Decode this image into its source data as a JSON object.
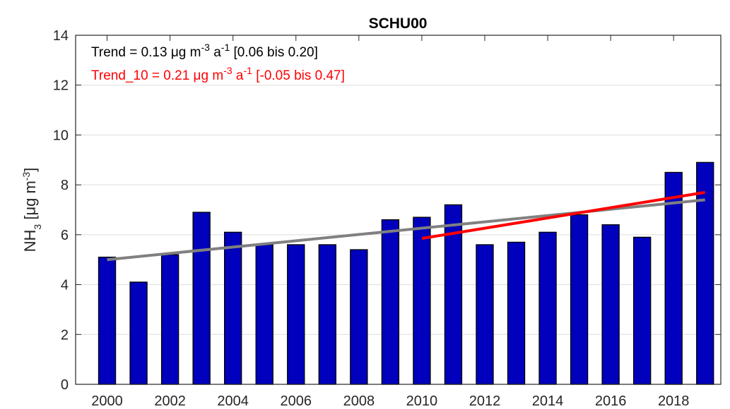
{
  "chart_data": {
    "type": "bar",
    "title": "SCHU00",
    "y_label": [
      {
        "text": "NH"
      },
      {
        "text": "3",
        "sub": true
      },
      {
        "text": " [μg m"
      },
      {
        "text": "-3",
        "sup": true
      },
      {
        "text": "]"
      }
    ],
    "x": [
      2000,
      2001,
      2002,
      2003,
      2004,
      2005,
      2006,
      2007,
      2008,
      2009,
      2010,
      2011,
      2012,
      2013,
      2014,
      2015,
      2016,
      2017,
      2018,
      2019
    ],
    "values": [
      5.1,
      4.1,
      5.2,
      6.9,
      6.1,
      5.6,
      5.6,
      5.6,
      5.4,
      6.6,
      6.7,
      7.2,
      5.6,
      5.7,
      6.1,
      6.8,
      6.4,
      5.9,
      8.5,
      8.9
    ],
    "color": "#0000bd",
    "xlim": [
      1999,
      2019.5
    ],
    "xticks": [
      2000,
      2002,
      2004,
      2006,
      2008,
      2010,
      2012,
      2014,
      2016,
      2018
    ],
    "ylim": [
      0,
      14
    ],
    "yticks": [
      0,
      2,
      4,
      6,
      8,
      10,
      12,
      14
    ],
    "grid": true,
    "lines": [
      {
        "color": "#808080",
        "x": [
          2000,
          2019
        ],
        "values": [
          5.0,
          7.4
        ]
      },
      {
        "color": "#ff0000",
        "x": [
          2010,
          2019
        ],
        "values": [
          5.85,
          7.7
        ]
      }
    ],
    "annotations": [
      {
        "color": "#000000",
        "parts": [
          {
            "text": "Trend = 0.13 μg m"
          },
          {
            "text": "-3",
            "sup": true
          },
          {
            "text": " a"
          },
          {
            "text": "-1",
            "sup": true
          },
          {
            "text": " [0.06 bis 0.20]"
          }
        ]
      },
      {
        "color": "#ff0000",
        "parts": [
          {
            "text": "Trend_10 = 0.21 μg m"
          },
          {
            "text": "-3",
            "sup": true
          },
          {
            "text": " a"
          },
          {
            "text": "-1",
            "sup": true
          },
          {
            "text": " [-0.05 bis 0.47]"
          }
        ]
      }
    ]
  }
}
